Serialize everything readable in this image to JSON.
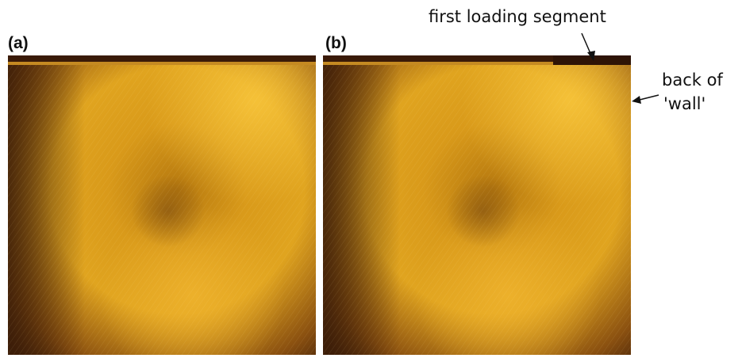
{
  "panels": [
    {
      "label": "(a)"
    },
    {
      "label": "(b)"
    }
  ],
  "annotations": [
    {
      "text": "first loading segment"
    },
    {
      "lines": [
        "back of",
        "'wall'"
      ]
    }
  ]
}
